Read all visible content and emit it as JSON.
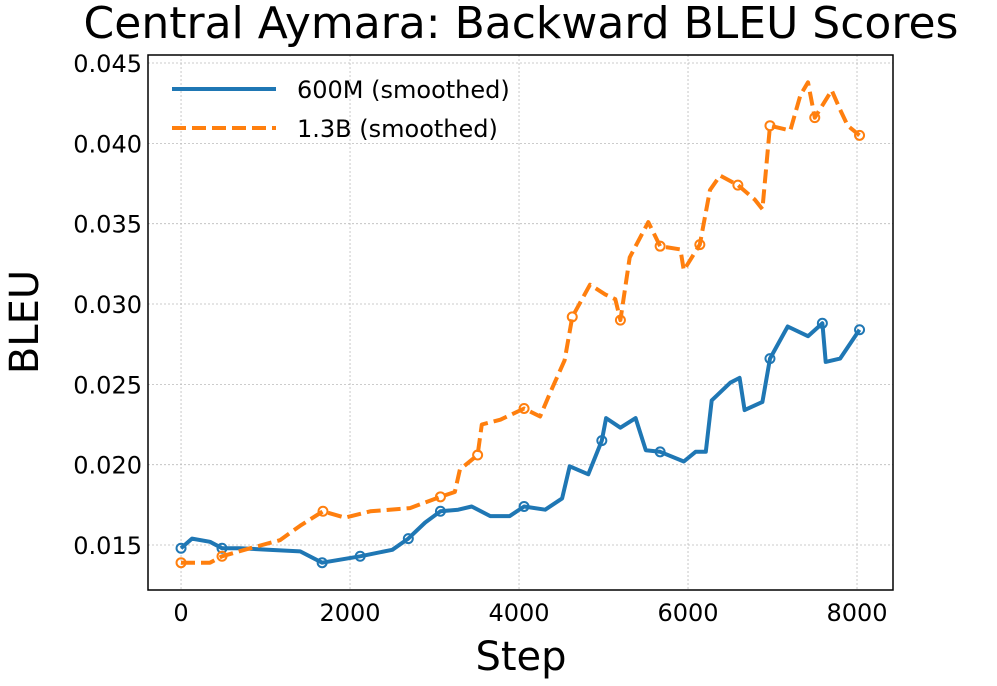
{
  "chart_data": {
    "type": "line",
    "title": "Central Aymara: Backward BLEU Scores",
    "xlabel": "Step",
    "ylabel": "BLEU",
    "xlim": [
      -391,
      8426
    ],
    "ylim": [
      0.0122,
      0.0455
    ],
    "xticks": [
      0,
      2000,
      4000,
      6000,
      8000
    ],
    "xtick_labels": [
      "0",
      "2000",
      "4000",
      "6000",
      "8000"
    ],
    "yticks": [
      0.015,
      0.02,
      0.025,
      0.03,
      0.035,
      0.04,
      0.045
    ],
    "ytick_labels": [
      "0.015",
      "0.020",
      "0.025",
      "0.030",
      "0.035",
      "0.040",
      "0.045"
    ],
    "grid": true,
    "legend_position": "top-left",
    "series": [
      {
        "name": "600M (smoothed)",
        "color": "#1f77b4",
        "style": "solid",
        "x": [
          0,
          130,
          343,
          485,
          700,
          1030,
          1410,
          1670,
          2120,
          2500,
          2690,
          2890,
          3070,
          3280,
          3440,
          3660,
          3890,
          4060,
          4310,
          4510,
          4600,
          4820,
          4980,
          5030,
          5200,
          5380,
          5500,
          5670,
          5950,
          6090,
          6210,
          6280,
          6500,
          6610,
          6670,
          6880,
          6970,
          7180,
          7420,
          7590,
          7630,
          7800,
          8030
        ],
        "y": [
          0.0148,
          0.0154,
          0.0152,
          0.0148,
          0.0148,
          0.0147,
          0.0146,
          0.0139,
          0.0143,
          0.0147,
          0.0154,
          0.0164,
          0.0171,
          0.0172,
          0.0174,
          0.0168,
          0.0168,
          0.0174,
          0.0172,
          0.0179,
          0.0199,
          0.0194,
          0.0215,
          0.0229,
          0.0223,
          0.0229,
          0.0209,
          0.0208,
          0.0202,
          0.0208,
          0.0208,
          0.024,
          0.0251,
          0.0254,
          0.0234,
          0.0239,
          0.0266,
          0.0286,
          0.028,
          0.0288,
          0.0264,
          0.0266,
          0.0284
        ],
        "markers_at": [
          0,
          3,
          7,
          8,
          10,
          12,
          17,
          22,
          27,
          36,
          39,
          42
        ]
      },
      {
        "name": "1.3B (smoothed)",
        "color": "#ff7f0e",
        "style": "dashed",
        "x": [
          0,
          343,
          485,
          820,
          1170,
          1410,
          1680,
          1940,
          2240,
          2710,
          3070,
          3240,
          3300,
          3510,
          3560,
          3780,
          4060,
          4250,
          4370,
          4540,
          4630,
          4840,
          5020,
          5140,
          5200,
          5310,
          5530,
          5670,
          5910,
          5950,
          6140,
          6260,
          6380,
          6590,
          6790,
          6880,
          6970,
          7210,
          7330,
          7420,
          7500,
          7700,
          7800,
          7890,
          8030
        ],
        "y": [
          0.0139,
          0.0139,
          0.0143,
          0.0148,
          0.0153,
          0.0162,
          0.0171,
          0.0167,
          0.0171,
          0.0173,
          0.018,
          0.0183,
          0.0197,
          0.0206,
          0.0225,
          0.0228,
          0.0235,
          0.023,
          0.0245,
          0.0265,
          0.0292,
          0.0312,
          0.0306,
          0.0303,
          0.029,
          0.0329,
          0.0351,
          0.0336,
          0.0334,
          0.0321,
          0.0337,
          0.0371,
          0.038,
          0.0374,
          0.0365,
          0.0359,
          0.0411,
          0.0408,
          0.043,
          0.0438,
          0.0416,
          0.0433,
          0.0421,
          0.0411,
          0.0405
        ],
        "markers_at": [
          0,
          2,
          6,
          10,
          13,
          16,
          20,
          24,
          27,
          30,
          33,
          36,
          40,
          44
        ]
      }
    ]
  }
}
